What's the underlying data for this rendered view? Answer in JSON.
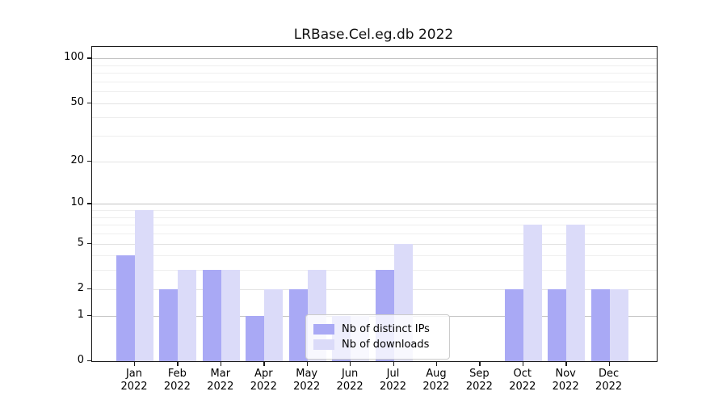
{
  "chart_data": {
    "type": "bar",
    "title": "LRBase.Cel.eg.db 2022",
    "categories": [
      "Jan",
      "Feb",
      "Mar",
      "Apr",
      "May",
      "Jun",
      "Jul",
      "Aug",
      "Sep",
      "Oct",
      "Nov",
      "Dec"
    ],
    "category_year": "2022",
    "series": [
      {
        "name": "Nb of distinct IPs",
        "color": "#a9a9f5",
        "values": [
          4,
          2,
          3,
          1,
          2,
          1,
          3,
          0,
          0,
          2,
          2,
          2
        ]
      },
      {
        "name": "Nb of downloads",
        "color": "#dbdbf9",
        "values": [
          9,
          3,
          3,
          2,
          3,
          1,
          5,
          0,
          0,
          7,
          7,
          2
        ]
      }
    ],
    "y_axis": {
      "scale": "log10(1+x)",
      "ticks": [
        0,
        1,
        2,
        5,
        10,
        20,
        50,
        100
      ],
      "decade_ticks": [
        1,
        10,
        100
      ],
      "minor_gridlines": [
        3,
        4,
        6,
        7,
        8,
        9,
        30,
        40,
        60,
        70,
        80,
        90
      ]
    },
    "x_axis": {
      "label_format": "month over year"
    },
    "legend": {
      "position": "lower center"
    },
    "grid": "horizontal",
    "background_color": "#ffffff",
    "ylim": [
      0,
      120
    ]
  }
}
